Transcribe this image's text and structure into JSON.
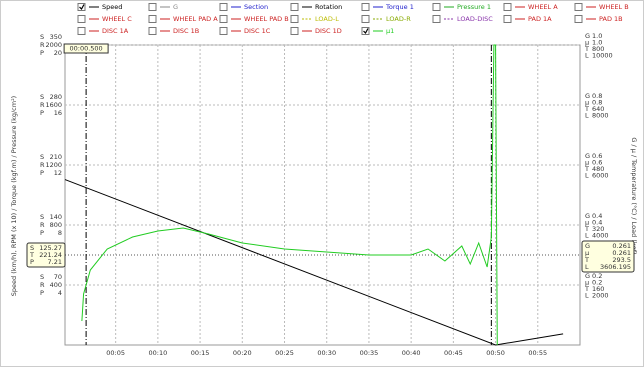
{
  "chart_data": {
    "type": "line",
    "legend_items": [
      {
        "name": "Speed",
        "color": "#000000",
        "checked": true,
        "dashed": false
      },
      {
        "name": "G",
        "color": "#888888",
        "checked": false,
        "dashed": false
      },
      {
        "name": "Section",
        "color": "#2222cc",
        "checked": false,
        "dashed": false
      },
      {
        "name": "Rotation",
        "color": "#000000",
        "checked": false,
        "dashed": false
      },
      {
        "name": "Torque 1",
        "color": "#2222cc",
        "checked": false,
        "dashed": false
      },
      {
        "name": "Pressure 1",
        "color": "#22aa22",
        "checked": false,
        "dashed": false
      },
      {
        "name": "WHEEL A",
        "color": "#cc2222",
        "checked": false,
        "dashed": false
      },
      {
        "name": "WHEEL B",
        "color": "#cc2222",
        "checked": false,
        "dashed": false
      },
      {
        "name": "WHEEL C",
        "color": "#cc2222",
        "checked": false,
        "dashed": false
      },
      {
        "name": "WHEEL PAD A",
        "color": "#cc2222",
        "checked": false,
        "dashed": false
      },
      {
        "name": "WHEEL PAD B",
        "color": "#cc2222",
        "checked": false,
        "dashed": false
      },
      {
        "name": "LOAD-L",
        "color": "#bbbb00",
        "checked": false,
        "dashed": true
      },
      {
        "name": "LOAD-R",
        "color": "#88aa00",
        "checked": false,
        "dashed": true
      },
      {
        "name": "LOAD-DISC",
        "color": "#8833aa",
        "checked": false,
        "dashed": true
      },
      {
        "name": "PAD 1A",
        "color": "#cc2222",
        "checked": false,
        "dashed": false
      },
      {
        "name": "PAD 1B",
        "color": "#cc2222",
        "checked": false,
        "dashed": false
      },
      {
        "name": "DISC 1A",
        "color": "#cc2222",
        "checked": false,
        "dashed": false
      },
      {
        "name": "DISC 1B",
        "color": "#cc2222",
        "checked": false,
        "dashed": false
      },
      {
        "name": "DISC 1C",
        "color": "#cc2222",
        "checked": false,
        "dashed": false
      },
      {
        "name": "DISC 1D",
        "color": "#cc2222",
        "checked": false,
        "dashed": false
      },
      {
        "name": "μ1",
        "color": "#22cc22",
        "checked": true,
        "dashed": false
      }
    ],
    "y_label": "Speed (km/h), RPM (x 10) / Torque (kgf.m) / Pressure (kg/cm²)",
    "y2_label": "G / μ / Temperature (°C) / Load (kgf)",
    "xlim": [
      -1,
      60
    ],
    "xticks": [
      {
        "value": 5,
        "label": "00:05"
      },
      {
        "value": 10,
        "label": "00:10"
      },
      {
        "value": 15,
        "label": "00:15"
      },
      {
        "value": 20,
        "label": "00:20"
      },
      {
        "value": 25,
        "label": "00:25"
      },
      {
        "value": 30,
        "label": "00:30"
      },
      {
        "value": 35,
        "label": "00:35"
      },
      {
        "value": 40,
        "label": "00:40"
      },
      {
        "value": 45,
        "label": "00:45"
      },
      {
        "value": 50,
        "label": "00:50"
      },
      {
        "value": 55,
        "label": "00:55"
      }
    ],
    "left_axes": [
      {
        "name": "S",
        "lim": [
          0,
          350
        ],
        "ticks": [
          70,
          140,
          210,
          280,
          350
        ]
      },
      {
        "name": "R",
        "lim": [
          0,
          2000
        ],
        "ticks": [
          400,
          800,
          1200,
          1600,
          2000
        ]
      },
      {
        "name": "P",
        "lim": [
          0,
          20
        ],
        "ticks": [
          4,
          8,
          12,
          16,
          20
        ]
      }
    ],
    "right_axes": [
      {
        "name": "G",
        "lim": [
          0,
          1
        ],
        "ticks": [
          0.2,
          0.4,
          0.6,
          0.8,
          {
            "value": 1,
            "label": "1.0"
          }
        ]
      },
      {
        "name": "μ",
        "lim": [
          0,
          1
        ],
        "ticks": [
          0.2,
          0.4,
          0.6,
          0.8,
          {
            "value": 1,
            "label": "1.0"
          }
        ]
      },
      {
        "name": "T",
        "lim": [
          0,
          800
        ],
        "ticks": [
          160,
          320,
          480,
          640,
          800
        ]
      },
      {
        "name": "L",
        "lim": [
          0,
          10000
        ],
        "ticks": [
          2000,
          4000,
          6000,
          8000,
          10000
        ]
      }
    ],
    "series": [
      {
        "name": "Speed",
        "color": "#000000",
        "axis": "S",
        "x": [
          -1,
          50,
          58
        ],
        "values": [
          193,
          0,
          13
        ]
      },
      {
        "name": "μ1",
        "color": "#22cc22",
        "axis": "μ",
        "x": [
          1,
          1.2,
          2,
          4,
          7,
          10,
          13,
          16,
          20,
          25,
          30,
          35,
          40,
          42,
          44,
          46,
          47,
          48,
          49,
          49.5,
          49.8,
          50,
          50.2
        ],
        "values": [
          0.08,
          0.17,
          0.25,
          0.32,
          0.36,
          0.38,
          0.39,
          0.37,
          0.34,
          0.32,
          0.31,
          0.3,
          0.3,
          0.32,
          0.28,
          0.33,
          0.27,
          0.34,
          0.26,
          0.36,
          1.0,
          1.0,
          0
        ]
      }
    ],
    "cursors": [
      1.5,
      49.5
    ],
    "reference_mu": 0.3,
    "cursor_time": "00:00.500",
    "readout_left": [
      {
        "name": "S",
        "value": 125.27
      },
      {
        "name": "T",
        "value": 221.24
      },
      {
        "name": "P",
        "value": 7.21
      }
    ],
    "readout_right": [
      {
        "name": "G",
        "value": 0.261
      },
      {
        "name": "μ",
        "value": 0.261
      },
      {
        "name": "T",
        "value": 293.5
      },
      {
        "name": "L",
        "value": 3606.195
      }
    ]
  }
}
